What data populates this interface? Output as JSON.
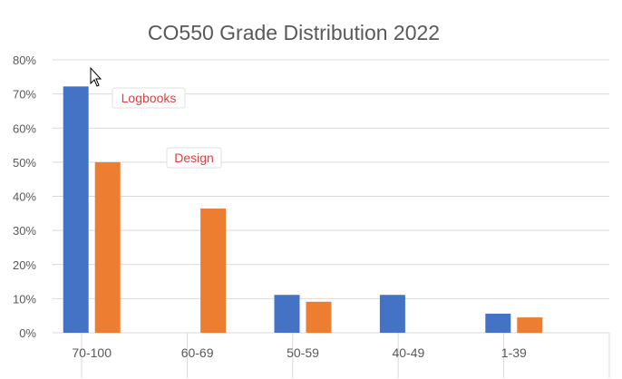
{
  "colors": {
    "logbooks": "#4472c4",
    "design": "#ed7d31",
    "callout_text": "#e04040"
  },
  "icons": {
    "cursor": "arrow-pointer-icon"
  },
  "chart_data": {
    "type": "bar",
    "title": "CO550 Grade Distribution 2022",
    "xlabel": "",
    "ylabel": "",
    "ylim": [
      0,
      80
    ],
    "yticks": [
      "0%",
      "10%",
      "20%",
      "30%",
      "40%",
      "50%",
      "60%",
      "70%",
      "80%"
    ],
    "grid": true,
    "categories": [
      "70-100",
      "60-69",
      "50-59",
      "40-49",
      "1-39"
    ],
    "series": [
      {
        "name": "Logbooks",
        "values": [
          72.2,
          0,
          11.1,
          11.1,
          5.6
        ]
      },
      {
        "name": "Design",
        "values": [
          50,
          36.4,
          9.1,
          0,
          4.5
        ]
      }
    ],
    "annotations": [
      {
        "text": "Logbooks",
        "series": "Logbooks"
      },
      {
        "text": "Design",
        "series": "Design"
      }
    ]
  }
}
